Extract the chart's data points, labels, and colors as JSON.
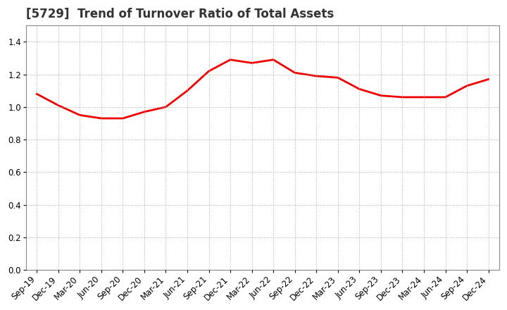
{
  "title": "[5729]  Trend of Turnover Ratio of Total Assets",
  "x_labels": [
    "Sep-19",
    "Dec-19",
    "Mar-20",
    "Jun-20",
    "Sep-20",
    "Dec-20",
    "Mar-21",
    "Jun-21",
    "Sep-21",
    "Dec-21",
    "Mar-22",
    "Jun-22",
    "Sep-22",
    "Dec-22",
    "Mar-23",
    "Jun-23",
    "Sep-23",
    "Dec-23",
    "Mar-24",
    "Jun-24",
    "Sep-24",
    "Dec-24"
  ],
  "y_values": [
    1.08,
    1.01,
    0.95,
    0.93,
    0.93,
    0.97,
    1.0,
    1.1,
    1.22,
    1.29,
    1.27,
    1.29,
    1.21,
    1.19,
    1.18,
    1.11,
    1.07,
    1.06,
    1.06,
    1.06,
    1.13,
    1.17
  ],
  "line_color": "#ee0000",
  "line_width": 2.0,
  "ylim": [
    0.0,
    1.5
  ],
  "yticks": [
    0.0,
    0.2,
    0.4,
    0.6,
    0.8,
    1.0,
    1.2,
    1.4
  ],
  "grid_color": "#aaaaaa",
  "bg_color": "#ffffff",
  "title_fontsize": 12,
  "tick_fontsize": 8.5,
  "title_color": "#333333"
}
